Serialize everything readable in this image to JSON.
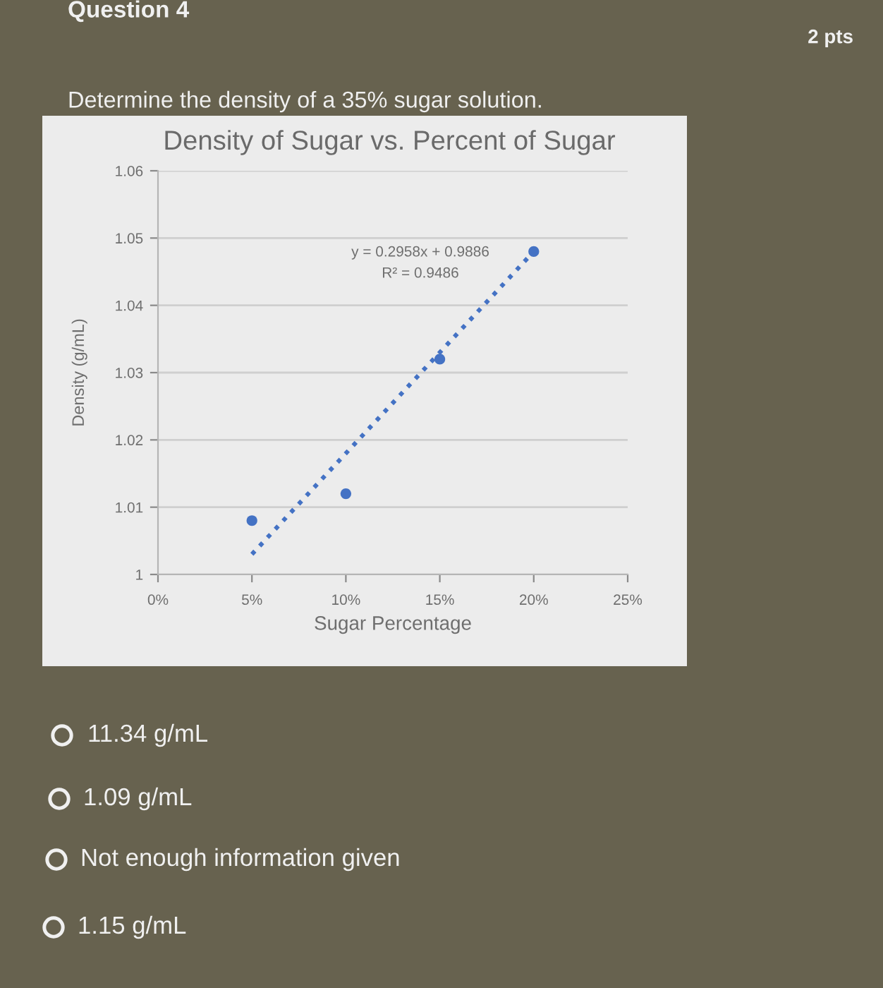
{
  "chart_data": {
    "type": "scatter",
    "title": "Density of Sugar vs. Percent of Sugar",
    "xlabel": "Sugar Percentage",
    "ylabel": "Density (g/mL)",
    "series": [
      {
        "color": "#4472c4",
        "marker": "circle",
        "x": [
          5,
          10,
          15,
          20
        ],
        "values": [
          1.008,
          1.012,
          1.032,
          1.048
        ]
      },
      {
        "type": "line",
        "color": "#4472c4",
        "marker": "none",
        "line_style": "dotted",
        "x": [
          5,
          20
        ],
        "values": [
          1.003,
          1.048
        ]
      }
    ],
    "xlim": [
      0,
      25
    ],
    "xticks": [
      {
        "value": 0,
        "label": "0%"
      },
      {
        "value": 5,
        "label": "5%"
      },
      {
        "value": 10,
        "label": "10%"
      },
      {
        "value": 15,
        "label": "15%"
      },
      {
        "value": 20,
        "label": "20%"
      },
      {
        "value": 25,
        "label": "25%"
      }
    ],
    "ylim": [
      1,
      1.06
    ],
    "yticks": [
      1,
      1.01,
      1.02,
      1.03,
      1.04,
      1.05,
      1.06
    ],
    "grid": "y",
    "annotations": [
      "Question 4",
      "2 pts",
      "Determine the density of a 35% sugar solution.",
      "11.34 g/mL",
      "1.09 g/mL",
      "Not enough information given",
      "1.15 g/mL",
      "y = 0.2958x + 0.9886",
      "R² = 0.9486"
    ]
  }
}
